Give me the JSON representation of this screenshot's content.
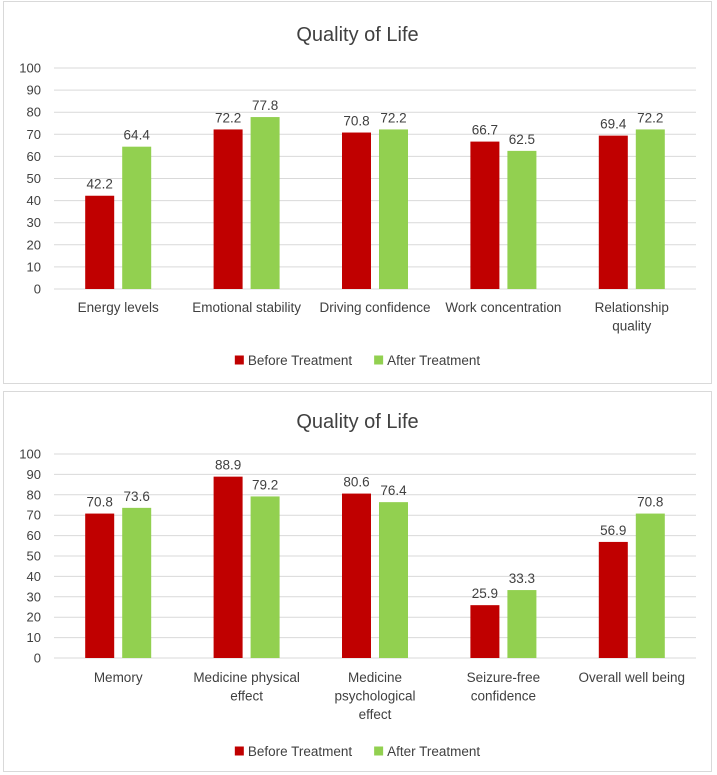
{
  "colors": {
    "before": "#c00000",
    "after": "#92d050",
    "grid": "#d9d9d9",
    "text": "#404040"
  },
  "chart_data": [
    {
      "type": "bar",
      "title": "Quality of Life",
      "categories": [
        [
          "Energy levels"
        ],
        [
          "Emotional stability"
        ],
        [
          "Driving confidence"
        ],
        [
          "Work concentration"
        ],
        [
          "Relationship",
          "quality"
        ]
      ],
      "series": [
        {
          "name": "Before Treatment",
          "values": [
            42.2,
            72.2,
            70.8,
            66.7,
            69.4
          ]
        },
        {
          "name": "After Treatment",
          "values": [
            64.4,
            77.8,
            72.2,
            62.5,
            72.2
          ]
        }
      ],
      "yticks": [
        "0",
        "10",
        "20",
        "30",
        "40",
        "50",
        "60",
        "70",
        "80",
        "90",
        "100"
      ],
      "ylim": [
        0,
        100
      ],
      "grid": true,
      "legend": "bottom"
    },
    {
      "type": "bar",
      "title": "Quality of Life",
      "categories": [
        [
          "Memory"
        ],
        [
          "Medicine physical",
          "effect"
        ],
        [
          "Medicine",
          "psychological",
          "effect"
        ],
        [
          "Seizure-free",
          "confidence"
        ],
        [
          "Overall well being"
        ]
      ],
      "series": [
        {
          "name": "Before Treatment",
          "values": [
            70.8,
            88.9,
            80.6,
            25.9,
            56.9
          ]
        },
        {
          "name": "After Treatment",
          "values": [
            73.6,
            79.2,
            76.4,
            33.3,
            70.8
          ]
        }
      ],
      "yticks": [
        "0",
        "10",
        "20",
        "30",
        "40",
        "50",
        "60",
        "70",
        "80",
        "90",
        "100"
      ],
      "ylim": [
        0,
        100
      ],
      "grid": true,
      "legend": "bottom"
    }
  ]
}
